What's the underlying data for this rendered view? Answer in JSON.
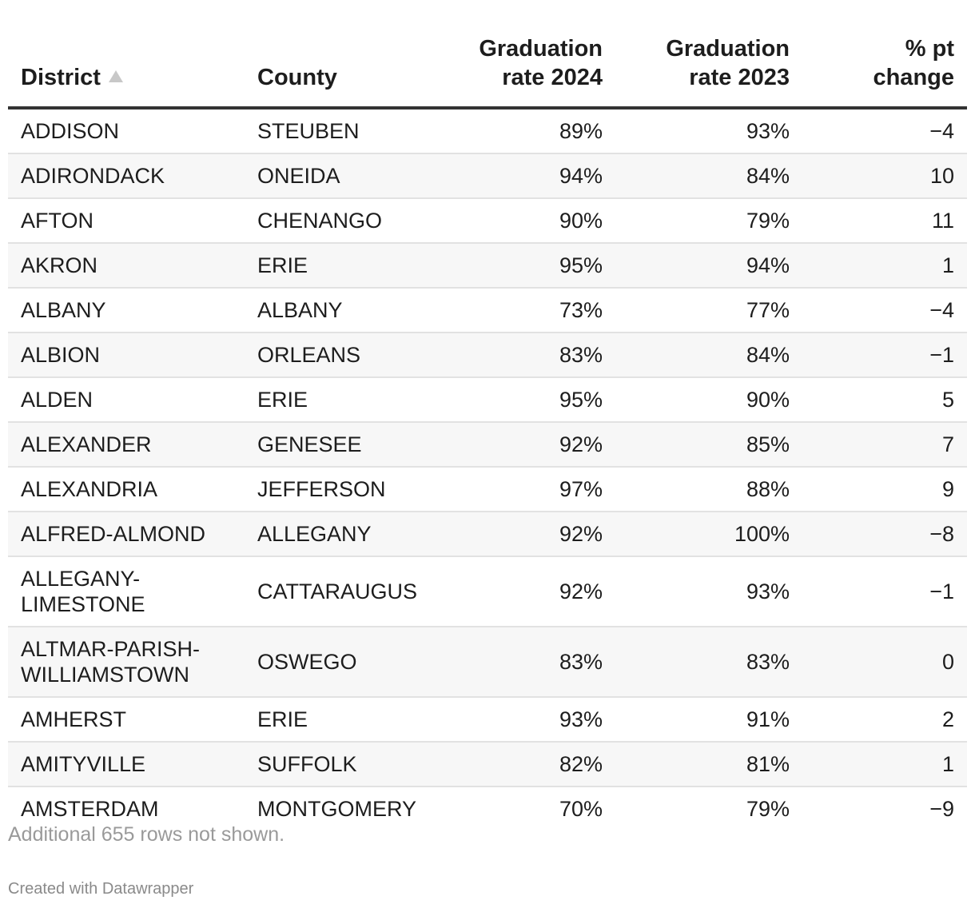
{
  "chart_data": {
    "type": "table",
    "columns": [
      {
        "label_lines": [
          "District"
        ],
        "sorted": "ascending",
        "align": "left"
      },
      {
        "label_lines": [
          "County"
        ],
        "align": "left"
      },
      {
        "label_lines": [
          "Graduation",
          "rate 2024"
        ],
        "align": "right"
      },
      {
        "label_lines": [
          "Graduation",
          "rate 2023"
        ],
        "align": "right"
      },
      {
        "label_lines": [
          "% pt",
          "change"
        ],
        "align": "right"
      }
    ],
    "rows": [
      {
        "district": [
          "ADDISON"
        ],
        "county": "STEUBEN",
        "rate_2024": "89%",
        "rate_2023": "93%",
        "change": "−4"
      },
      {
        "district": [
          "ADIRONDACK"
        ],
        "county": "ONEIDA",
        "rate_2024": "94%",
        "rate_2023": "84%",
        "change": "10"
      },
      {
        "district": [
          "AFTON"
        ],
        "county": "CHENANGO",
        "rate_2024": "90%",
        "rate_2023": "79%",
        "change": "11"
      },
      {
        "district": [
          "AKRON"
        ],
        "county": "ERIE",
        "rate_2024": "95%",
        "rate_2023": "94%",
        "change": "1"
      },
      {
        "district": [
          "ALBANY"
        ],
        "county": "ALBANY",
        "rate_2024": "73%",
        "rate_2023": "77%",
        "change": "−4"
      },
      {
        "district": [
          "ALBION"
        ],
        "county": "ORLEANS",
        "rate_2024": "83%",
        "rate_2023": "84%",
        "change": "−1"
      },
      {
        "district": [
          "ALDEN"
        ],
        "county": "ERIE",
        "rate_2024": "95%",
        "rate_2023": "90%",
        "change": "5"
      },
      {
        "district": [
          "ALEXANDER"
        ],
        "county": "GENESEE",
        "rate_2024": "92%",
        "rate_2023": "85%",
        "change": "7"
      },
      {
        "district": [
          "ALEXANDRIA"
        ],
        "county": "JEFFERSON",
        "rate_2024": "97%",
        "rate_2023": "88%",
        "change": "9"
      },
      {
        "district": [
          "ALFRED-ALMOND"
        ],
        "county": "ALLEGANY",
        "rate_2024": "92%",
        "rate_2023": "100%",
        "change": "−8"
      },
      {
        "district": [
          "ALLEGANY-",
          "LIMESTONE"
        ],
        "county": "CATTARAUGUS",
        "rate_2024": "92%",
        "rate_2023": "93%",
        "change": "−1"
      },
      {
        "district": [
          "ALTMAR-PARISH-",
          "WILLIAMSTOWN"
        ],
        "county": "OSWEGO",
        "rate_2024": "83%",
        "rate_2023": "83%",
        "change": "0"
      },
      {
        "district": [
          "AMHERST"
        ],
        "county": "ERIE",
        "rate_2024": "93%",
        "rate_2023": "91%",
        "change": "2"
      },
      {
        "district": [
          "AMITYVILLE"
        ],
        "county": "SUFFOLK",
        "rate_2024": "82%",
        "rate_2023": "81%",
        "change": "1"
      },
      {
        "district": [
          "AMSTERDAM"
        ],
        "county": "MONTGOMERY",
        "rate_2024": "70%",
        "rate_2023": "79%",
        "change": "−9"
      }
    ],
    "footnote": "Additional 655 rows not shown."
  },
  "credit": "Created with Datawrapper",
  "colors": {
    "text": "#1d1d1d",
    "header_rule": "#333333",
    "row_rule": "#e2e2e2",
    "alt_row_bg": "#f7f7f7",
    "note": "#9a9a9a",
    "sort_arrow": "#c8c8c8"
  }
}
